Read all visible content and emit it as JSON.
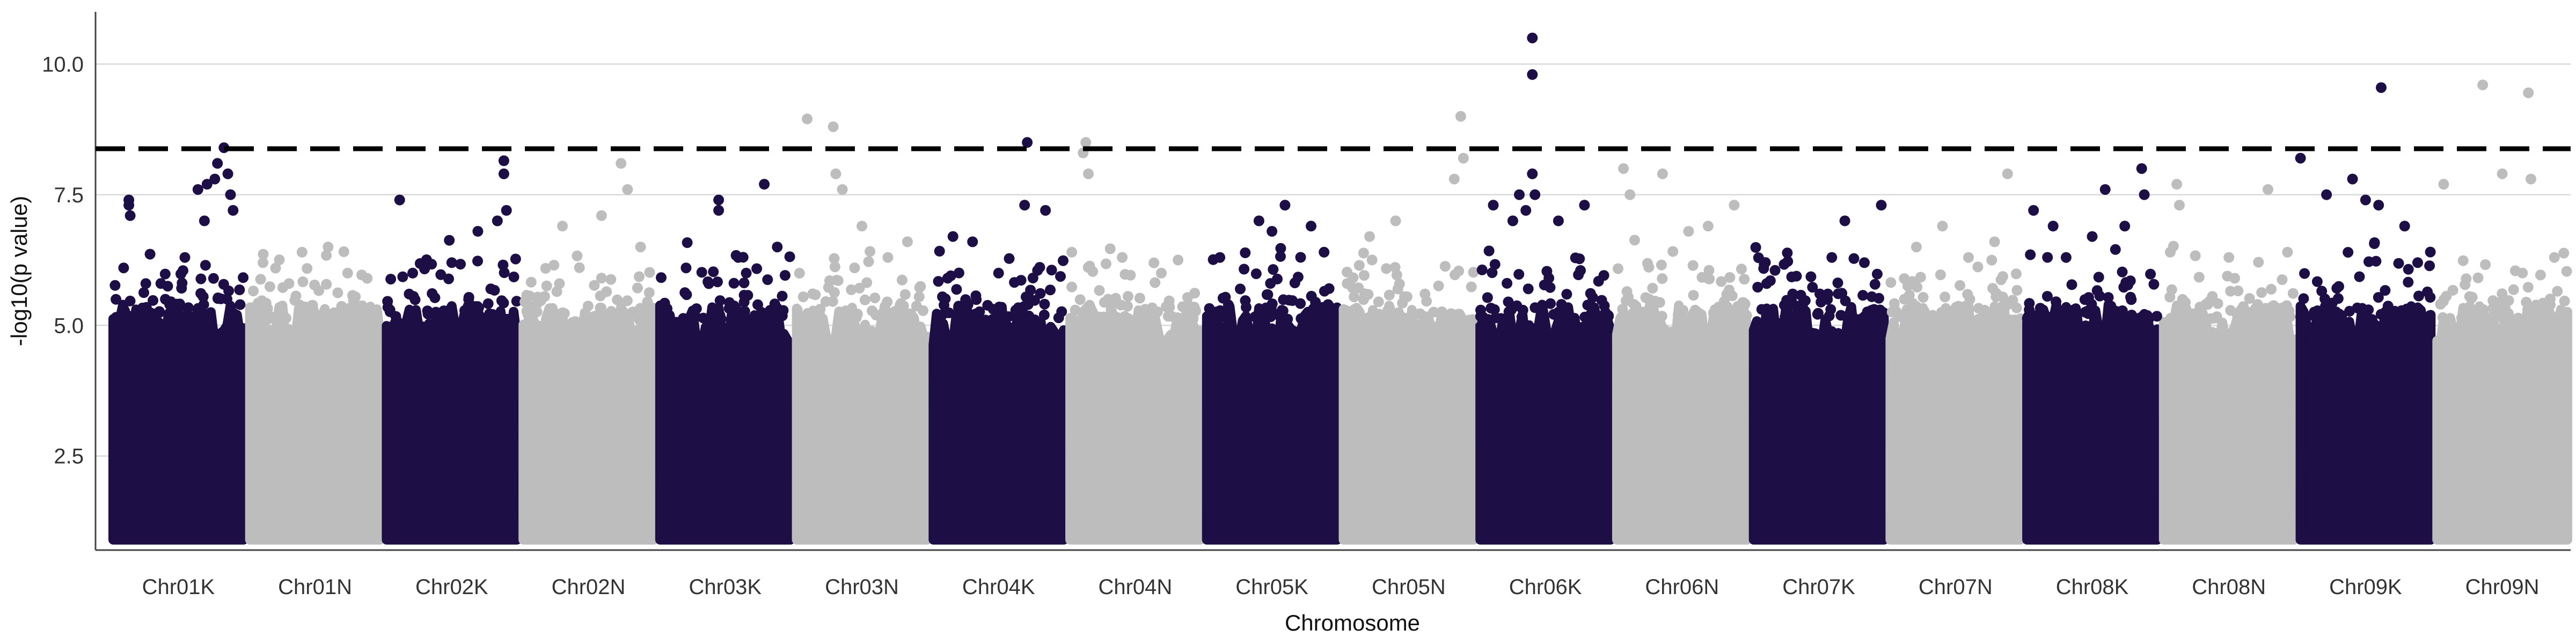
{
  "chart_data": {
    "type": "scatter",
    "subtype": "manhattan",
    "title": "",
    "xlabel": "Chromosome",
    "ylabel": "-log10(p value)",
    "ylim": [
      0.7,
      11.0
    ],
    "yticks": [
      2.5,
      5.0,
      7.5,
      10.0
    ],
    "ytick_labels": [
      "2.5",
      "5.0",
      "7.5",
      "10.0"
    ],
    "grid": "horizontal major gridlines",
    "legend": "none",
    "colors": {
      "odd": "#1d0f45",
      "even": "#bdbdbd",
      "threshold": "#000000",
      "grid": "#d9d9d9"
    },
    "threshold": {
      "y": 8.38,
      "style": "dashed"
    },
    "categories": [
      "Chr01K",
      "Chr01N",
      "Chr02K",
      "Chr02N",
      "Chr03K",
      "Chr03N",
      "Chr04K",
      "Chr04N",
      "Chr05K",
      "Chr05N",
      "Chr06K",
      "Chr06N",
      "Chr07K",
      "Chr07N",
      "Chr08K",
      "Chr08N",
      "Chr09K",
      "Chr09N"
    ],
    "series": [
      {
        "chromosome": "Chr01K",
        "color": "#1d0f45",
        "points": [
          [
            0.08,
            6.1
          ],
          [
            0.12,
            7.4
          ],
          [
            0.12,
            7.3
          ],
          [
            0.13,
            7.1
          ],
          [
            0.25,
            5.8
          ],
          [
            0.4,
            5.5
          ],
          [
            0.55,
            6.3
          ],
          [
            0.65,
            7.6
          ],
          [
            0.7,
            7.0
          ],
          [
            0.72,
            7.7
          ],
          [
            0.78,
            7.8
          ],
          [
            0.8,
            8.1
          ],
          [
            0.85,
            8.4
          ],
          [
            0.88,
            7.9
          ],
          [
            0.9,
            7.5
          ],
          [
            0.92,
            7.2
          ]
        ]
      },
      {
        "chromosome": "Chr01N",
        "color": "#bdbdbd",
        "points": [
          [
            0.1,
            6.2
          ],
          [
            0.3,
            5.8
          ],
          [
            0.4,
            6.4
          ],
          [
            0.6,
            6.5
          ],
          [
            0.75,
            6.0
          ],
          [
            0.9,
            5.9
          ]
        ]
      },
      {
        "chromosome": "Chr02K",
        "color": "#1d0f45",
        "points": [
          [
            0.1,
            7.4
          ],
          [
            0.2,
            6.0
          ],
          [
            0.5,
            6.2
          ],
          [
            0.7,
            6.8
          ],
          [
            0.85,
            7.0
          ],
          [
            0.9,
            8.15
          ],
          [
            0.9,
            7.9
          ],
          [
            0.92,
            7.2
          ]
        ]
      },
      {
        "chromosome": "Chr02N",
        "color": "#bdbdbd",
        "points": [
          [
            0.3,
            6.9
          ],
          [
            0.6,
            7.1
          ],
          [
            0.75,
            8.1
          ],
          [
            0.8,
            7.6
          ],
          [
            0.9,
            6.5
          ]
        ]
      },
      {
        "chromosome": "Chr03K",
        "color": "#1d0f45",
        "points": [
          [
            0.2,
            6.1
          ],
          [
            0.45,
            7.4
          ],
          [
            0.45,
            7.2
          ],
          [
            0.6,
            6.3
          ],
          [
            0.8,
            7.7
          ],
          [
            0.9,
            6.5
          ]
        ]
      },
      {
        "chromosome": "Chr03N",
        "color": "#bdbdbd",
        "points": [
          [
            0.08,
            8.95
          ],
          [
            0.28,
            8.8
          ],
          [
            0.3,
            7.9
          ],
          [
            0.35,
            7.6
          ],
          [
            0.5,
            6.9
          ],
          [
            0.7,
            6.3
          ],
          [
            0.85,
            6.6
          ]
        ]
      },
      {
        "chromosome": "Chr04K",
        "color": "#1d0f45",
        "points": [
          [
            0.15,
            6.7
          ],
          [
            0.3,
            6.6
          ],
          [
            0.5,
            6.0
          ],
          [
            0.7,
            7.3
          ],
          [
            0.72,
            8.5
          ],
          [
            0.86,
            7.2
          ]
        ]
      },
      {
        "chromosome": "Chr04N",
        "color": "#bdbdbd",
        "points": [
          [
            0.1,
            8.3
          ],
          [
            0.12,
            8.5
          ],
          [
            0.14,
            7.9
          ],
          [
            0.4,
            6.3
          ],
          [
            0.7,
            6.0
          ]
        ]
      },
      {
        "chromosome": "Chr05K",
        "color": "#1d0f45",
        "points": [
          [
            0.1,
            6.3
          ],
          [
            0.4,
            7.0
          ],
          [
            0.5,
            6.8
          ],
          [
            0.6,
            7.3
          ],
          [
            0.8,
            6.9
          ],
          [
            0.9,
            6.4
          ]
        ]
      },
      {
        "chromosome": "Chr05N",
        "color": "#bdbdbd",
        "points": [
          [
            0.2,
            6.7
          ],
          [
            0.4,
            7.0
          ],
          [
            0.85,
            7.8
          ],
          [
            0.9,
            9.0
          ],
          [
            0.92,
            8.2
          ]
        ]
      },
      {
        "chromosome": "Chr06K",
        "color": "#1d0f45",
        "points": [
          [
            0.1,
            7.3
          ],
          [
            0.25,
            7.0
          ],
          [
            0.3,
            7.5
          ],
          [
            0.35,
            7.2
          ],
          [
            0.4,
            10.5
          ],
          [
            0.4,
            9.8
          ],
          [
            0.4,
            7.9
          ],
          [
            0.42,
            7.5
          ],
          [
            0.6,
            7.0
          ],
          [
            0.8,
            7.3
          ]
        ]
      },
      {
        "chromosome": "Chr06N",
        "color": "#bdbdbd",
        "points": [
          [
            0.05,
            8.0
          ],
          [
            0.1,
            7.5
          ],
          [
            0.35,
            7.9
          ],
          [
            0.55,
            6.8
          ],
          [
            0.7,
            6.9
          ],
          [
            0.9,
            7.3
          ]
        ]
      },
      {
        "chromosome": "Chr07K",
        "color": "#1d0f45",
        "points": [
          [
            0.1,
            5.8
          ],
          [
            0.3,
            5.6
          ],
          [
            0.6,
            6.3
          ],
          [
            0.7,
            7.0
          ],
          [
            0.85,
            6.2
          ],
          [
            0.98,
            7.3
          ]
        ]
      },
      {
        "chromosome": "Chr07N",
        "color": "#bdbdbd",
        "points": [
          [
            0.2,
            6.5
          ],
          [
            0.4,
            6.9
          ],
          [
            0.6,
            6.3
          ],
          [
            0.8,
            6.6
          ],
          [
            0.9,
            7.9
          ]
        ]
      },
      {
        "chromosome": "Chr08K",
        "color": "#1d0f45",
        "points": [
          [
            0.05,
            7.2
          ],
          [
            0.2,
            6.9
          ],
          [
            0.3,
            6.3
          ],
          [
            0.5,
            6.7
          ],
          [
            0.6,
            7.6
          ],
          [
            0.75,
            6.9
          ],
          [
            0.88,
            8.0
          ],
          [
            0.9,
            7.5
          ]
        ]
      },
      {
        "chromosome": "Chr08N",
        "color": "#bdbdbd",
        "points": [
          [
            0.05,
            6.4
          ],
          [
            0.1,
            7.7
          ],
          [
            0.12,
            7.3
          ],
          [
            0.5,
            6.3
          ],
          [
            0.8,
            7.6
          ],
          [
            0.95,
            6.4
          ]
        ]
      },
      {
        "chromosome": "Chr09K",
        "color": "#1d0f45",
        "points": [
          [
            0.0,
            8.2
          ],
          [
            0.2,
            7.5
          ],
          [
            0.4,
            7.8
          ],
          [
            0.5,
            7.4
          ],
          [
            0.62,
            9.55
          ],
          [
            0.6,
            7.3
          ],
          [
            0.8,
            6.9
          ],
          [
            0.9,
            6.2
          ]
        ]
      },
      {
        "chromosome": "Chr09N",
        "color": "#bdbdbd",
        "points": [
          [
            0.05,
            7.7
          ],
          [
            0.35,
            9.6
          ],
          [
            0.5,
            7.9
          ],
          [
            0.7,
            9.45
          ],
          [
            0.72,
            7.8
          ],
          [
            0.9,
            6.3
          ]
        ]
      }
    ]
  }
}
